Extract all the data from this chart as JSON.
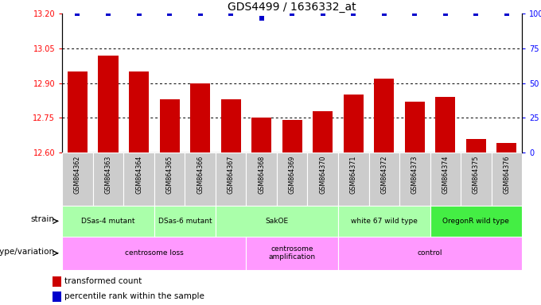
{
  "title": "GDS4499 / 1636332_at",
  "samples": [
    "GSM864362",
    "GSM864363",
    "GSM864364",
    "GSM864365",
    "GSM864366",
    "GSM864367",
    "GSM864368",
    "GSM864369",
    "GSM864370",
    "GSM864371",
    "GSM864372",
    "GSM864373",
    "GSM864374",
    "GSM864375",
    "GSM864376"
  ],
  "bar_values": [
    12.95,
    13.02,
    12.95,
    12.83,
    12.9,
    12.83,
    12.75,
    12.74,
    12.78,
    12.85,
    12.92,
    12.82,
    12.84,
    12.66,
    12.64
  ],
  "percentile_values": [
    100,
    100,
    100,
    100,
    100,
    100,
    97,
    100,
    100,
    100,
    100,
    100,
    100,
    100,
    100
  ],
  "bar_color": "#cc0000",
  "dot_color": "#0000cc",
  "ylim_left": [
    12.6,
    13.2
  ],
  "ylim_right": [
    0,
    100
  ],
  "yticks_left": [
    12.6,
    12.75,
    12.9,
    13.05,
    13.2
  ],
  "yticks_right": [
    0,
    25,
    50,
    75,
    100
  ],
  "grid_ticks": [
    12.75,
    12.9,
    13.05
  ],
  "strain_groups": [
    {
      "label": "DSas-4 mutant",
      "start": 0,
      "end": 3,
      "color": "#aaffaa"
    },
    {
      "label": "DSas-6 mutant",
      "start": 3,
      "end": 5,
      "color": "#aaffaa"
    },
    {
      "label": "SakOE",
      "start": 5,
      "end": 9,
      "color": "#aaffaa"
    },
    {
      "label": "white 67 wild type",
      "start": 9,
      "end": 12,
      "color": "#aaffaa"
    },
    {
      "label": "OregonR wild type",
      "start": 12,
      "end": 15,
      "color": "#44ee44"
    }
  ],
  "genotype_groups": [
    {
      "label": "centrosome loss",
      "start": 0,
      "end": 6,
      "color": "#ff99ff"
    },
    {
      "label": "centrosome\namplification",
      "start": 6,
      "end": 9,
      "color": "#ff99ff"
    },
    {
      "label": "control",
      "start": 9,
      "end": 15,
      "color": "#ff99ff"
    }
  ],
  "strain_label": "strain",
  "genotype_label": "genotype/variation",
  "legend_red": "transformed count",
  "legend_blue": "percentile rank within the sample",
  "xtick_bg": "#cccccc"
}
